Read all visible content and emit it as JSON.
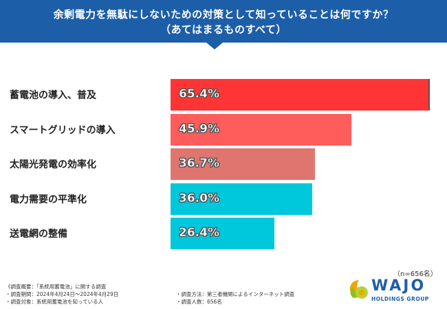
{
  "header": {
    "title_line1": "余剰電力を無駄にしないための対策として知っていることは何ですか？",
    "title_line2": "（あてはまるものすべて）"
  },
  "chart_data": {
    "type": "bar",
    "orientation": "horizontal",
    "categories": [
      "蓄電池の導入、普及",
      "スマートグリッドの導入",
      "太陽光発電の効率化",
      "電力需要の平準化",
      "送電網の整備"
    ],
    "values": [
      65.4,
      45.9,
      36.7,
      36.0,
      26.4
    ],
    "value_labels": [
      "65.4%",
      "45.9%",
      "36.7%",
      "36.0%",
      "26.4%"
    ],
    "colors": [
      "#ff3535",
      "#ff5c5c",
      "#e07570",
      "#00c8dc",
      "#00c8dc"
    ],
    "xlim": [
      0,
      100
    ],
    "grid": false
  },
  "sample_note": "（n=656名）",
  "survey": {
    "overview": "《調査概要：「系統用蓄電池」に関する調査",
    "period": "・調査期間：2024年4月24日〜2024年4月29日",
    "target": "・調査対象：系統用蓄電池を知っている人",
    "method": "・調査方法：第三者機関によるインターネット調査",
    "count": "・調査人数：656名"
  },
  "logo": {
    "name": "WAJO",
    "sub": "HOLDINGS GROUP",
    "colors": [
      "#f0a500",
      "#8dc21f",
      "#1d5ea8"
    ]
  }
}
